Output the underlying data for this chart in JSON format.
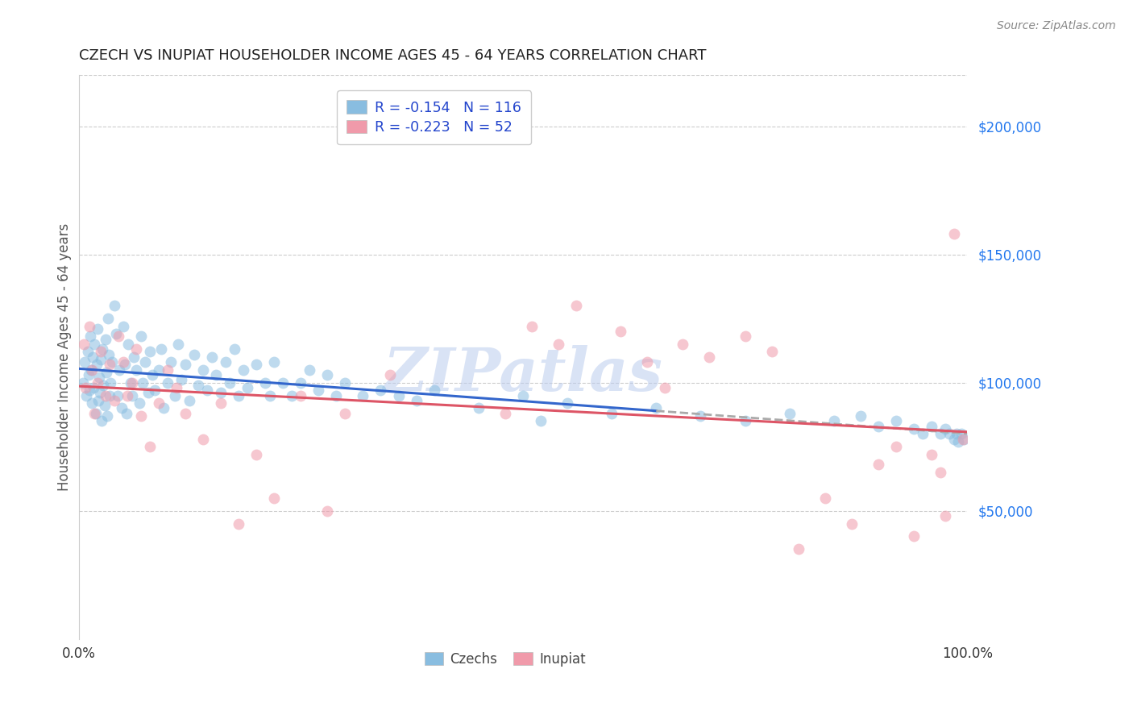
{
  "title": "CZECH VS INUPIAT HOUSEHOLDER INCOME AGES 45 - 64 YEARS CORRELATION CHART",
  "source": "Source: ZipAtlas.com",
  "ylabel": "Householder Income Ages 45 - 64 years",
  "ytick_labels": [
    "$50,000",
    "$100,000",
    "$150,000",
    "$200,000"
  ],
  "ytick_values": [
    50000,
    100000,
    150000,
    200000
  ],
  "legend_labels": [
    "Czechs",
    "Inupiat"
  ],
  "legend_line1": "R = -0.154   N = 116",
  "legend_line2": "R = -0.223   N = 52",
  "watermark": "ZIPatlas",
  "xlim": [
    0,
    1
  ],
  "ylim": [
    0,
    220000
  ],
  "czechs_x": [
    0.005,
    0.007,
    0.009,
    0.01,
    0.011,
    0.012,
    0.013,
    0.014,
    0.015,
    0.016,
    0.017,
    0.018,
    0.019,
    0.02,
    0.021,
    0.022,
    0.023,
    0.024,
    0.025,
    0.026,
    0.027,
    0.028,
    0.029,
    0.03,
    0.031,
    0.032,
    0.033,
    0.034,
    0.035,
    0.036,
    0.038,
    0.04,
    0.042,
    0.044,
    0.046,
    0.048,
    0.05,
    0.052,
    0.054,
    0.056,
    0.058,
    0.06,
    0.062,
    0.065,
    0.068,
    0.07,
    0.072,
    0.075,
    0.078,
    0.08,
    0.083,
    0.086,
    0.09,
    0.093,
    0.096,
    0.1,
    0.104,
    0.108,
    0.112,
    0.116,
    0.12,
    0.125,
    0.13,
    0.135,
    0.14,
    0.145,
    0.15,
    0.155,
    0.16,
    0.165,
    0.17,
    0.175,
    0.18,
    0.185,
    0.19,
    0.2,
    0.21,
    0.215,
    0.22,
    0.23,
    0.24,
    0.25,
    0.26,
    0.27,
    0.28,
    0.29,
    0.3,
    0.32,
    0.34,
    0.36,
    0.38,
    0.4,
    0.45,
    0.5,
    0.52,
    0.55,
    0.6,
    0.65,
    0.7,
    0.75,
    0.8,
    0.85,
    0.88,
    0.9,
    0.92,
    0.94,
    0.95,
    0.96,
    0.97,
    0.975,
    0.98,
    0.985,
    0.988,
    0.99,
    0.993,
    0.996
  ],
  "czechs_y": [
    100000,
    108000,
    95000,
    112000,
    103000,
    97000,
    118000,
    105000,
    92000,
    110000,
    98000,
    115000,
    88000,
    107000,
    121000,
    93000,
    102000,
    96000,
    109000,
    85000,
    113000,
    99000,
    91000,
    117000,
    104000,
    87000,
    125000,
    111000,
    95000,
    100000,
    108000,
    130000,
    119000,
    95000,
    105000,
    90000,
    122000,
    107000,
    88000,
    115000,
    100000,
    95000,
    110000,
    105000,
    92000,
    118000,
    100000,
    108000,
    96000,
    112000,
    103000,
    97000,
    105000,
    113000,
    90000,
    100000,
    108000,
    95000,
    115000,
    101000,
    107000,
    93000,
    111000,
    99000,
    105000,
    97000,
    110000,
    103000,
    96000,
    108000,
    100000,
    113000,
    95000,
    105000,
    98000,
    107000,
    100000,
    95000,
    108000,
    100000,
    95000,
    100000,
    105000,
    97000,
    103000,
    95000,
    100000,
    95000,
    97000,
    95000,
    93000,
    97000,
    90000,
    95000,
    85000,
    92000,
    88000,
    90000,
    87000,
    85000,
    88000,
    85000,
    87000,
    83000,
    85000,
    82000,
    80000,
    83000,
    80000,
    82000,
    80000,
    78000,
    80000,
    77000,
    80000,
    78000
  ],
  "inupiat_x": [
    0.006,
    0.008,
    0.012,
    0.015,
    0.018,
    0.021,
    0.025,
    0.03,
    0.035,
    0.04,
    0.045,
    0.05,
    0.055,
    0.06,
    0.065,
    0.07,
    0.08,
    0.09,
    0.1,
    0.11,
    0.12,
    0.14,
    0.16,
    0.18,
    0.2,
    0.22,
    0.25,
    0.28,
    0.3,
    0.35,
    0.48,
    0.51,
    0.54,
    0.56,
    0.61,
    0.64,
    0.66,
    0.68,
    0.71,
    0.75,
    0.78,
    0.81,
    0.84,
    0.87,
    0.9,
    0.92,
    0.94,
    0.96,
    0.97,
    0.975,
    0.985,
    0.995
  ],
  "inupiat_y": [
    115000,
    98000,
    122000,
    105000,
    88000,
    100000,
    112000,
    95000,
    107000,
    93000,
    118000,
    108000,
    95000,
    100000,
    113000,
    87000,
    75000,
    92000,
    105000,
    98000,
    88000,
    78000,
    92000,
    45000,
    72000,
    55000,
    95000,
    50000,
    88000,
    103000,
    88000,
    122000,
    115000,
    130000,
    120000,
    108000,
    98000,
    115000,
    110000,
    118000,
    112000,
    35000,
    55000,
    45000,
    68000,
    75000,
    40000,
    72000,
    65000,
    48000,
    158000,
    78000
  ],
  "czech_dot_color": "#89bde0",
  "inupiat_dot_color": "#f09aaa",
  "czech_line_color": "#3366cc",
  "inupiat_line_color": "#dd5566",
  "dash_line_color": "#aaaaaa",
  "dot_size": 100,
  "dot_alpha": 0.55,
  "background_color": "#ffffff",
  "grid_color": "#cccccc",
  "title_color": "#222222",
  "axis_label_color": "#555555",
  "ytick_color": "#2277ee",
  "xtick_color": "#333333",
  "legend_text_color": "#2244cc"
}
